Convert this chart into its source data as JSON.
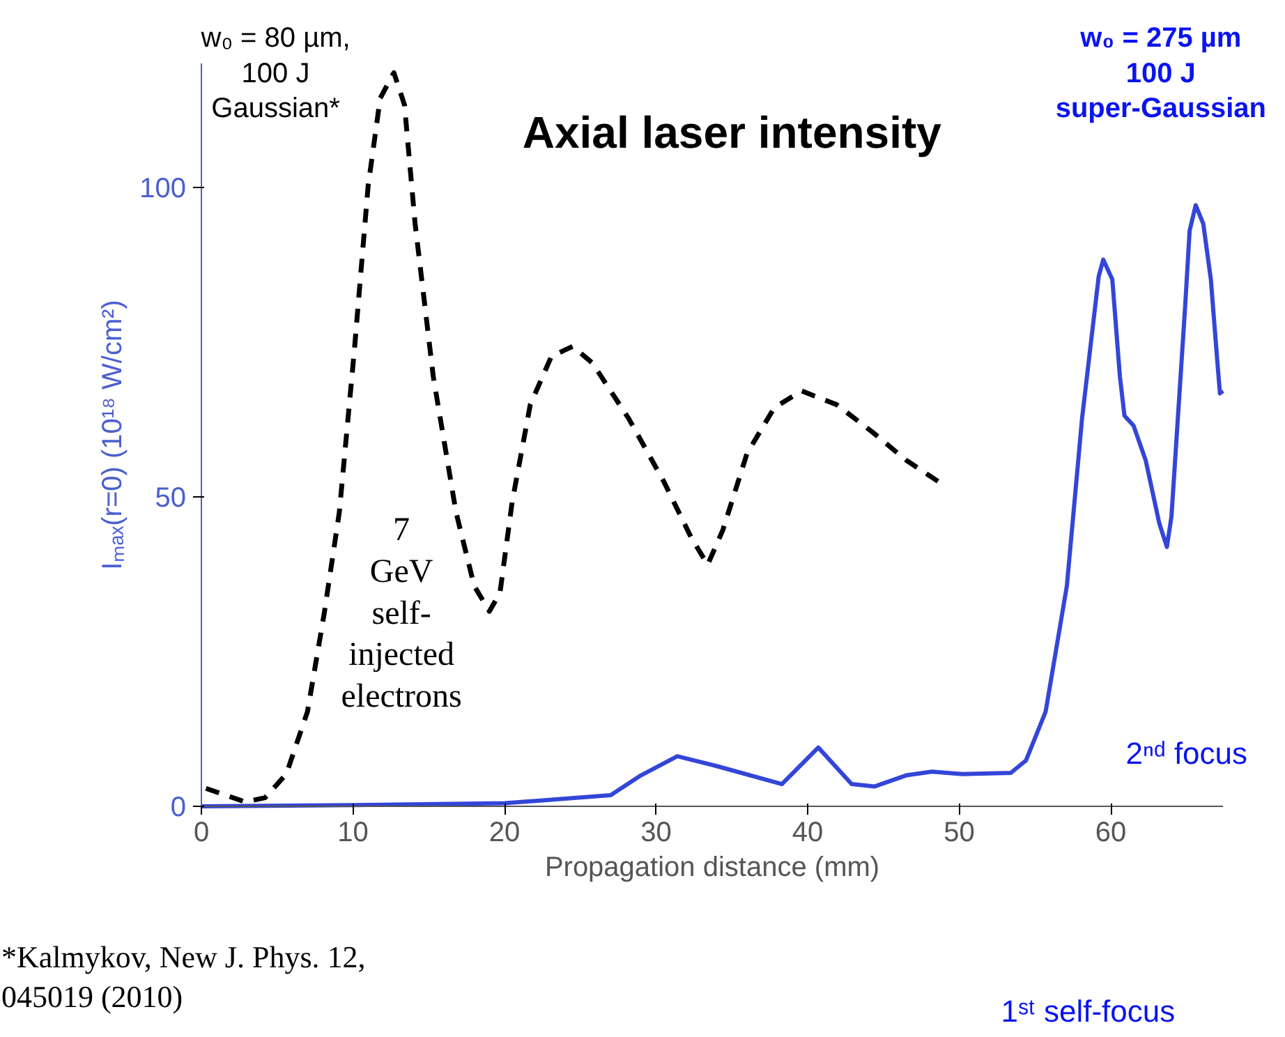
{
  "chart_data": {
    "type": "line",
    "title": "Axial laser intensity",
    "xlabel": "Propagation distance (mm)",
    "ylabel": "Iₘₐₓ(r=0) (10¹⁸ W/cm²)",
    "xlim": [
      0,
      67.4
    ],
    "ylim": [
      0,
      120
    ],
    "xticks": [
      0,
      10,
      20,
      30,
      40,
      50,
      60
    ],
    "yticks": [
      0,
      50,
      100
    ],
    "grid": false,
    "marker": "none",
    "series": [
      {
        "color": "#000000",
        "line_style": "dashed",
        "x": [
          0.3,
          2.9,
          4.2,
          5.6,
          7.0,
          8.1,
          9.1,
          10.1,
          11.0,
          11.8,
          12.7,
          13.4,
          14.1,
          15.3,
          16.8,
          18.0,
          19.0,
          19.7,
          20.5,
          21.7,
          23.1,
          24.5,
          25.8,
          28.2,
          30.5,
          32.3,
          33.4,
          34.4,
          36.0,
          37.8,
          39.6,
          41.9,
          44.3,
          46.5,
          48.6
        ],
        "values": [
          2.9,
          0.7,
          1.4,
          5.2,
          15.3,
          31.1,
          47.5,
          73.9,
          100.2,
          114.4,
          118.5,
          113.3,
          94.1,
          69.4,
          47.5,
          35.6,
          31.5,
          34.5,
          49.1,
          64.9,
          72.7,
          74.3,
          71.6,
          62.6,
          52.5,
          43.5,
          39.0,
          44.6,
          57.0,
          64.4,
          67.1,
          64.9,
          60.4,
          55.9,
          52.5
        ]
      },
      {
        "color": "#3346d8",
        "line_style": "solid",
        "x": [
          0,
          10,
          20,
          27,
          29,
          31.4,
          34,
          38.3,
          40.7,
          42.9,
          44.4,
          46.5,
          48.2,
          50.2,
          53.4,
          54.4,
          55.7,
          57.1,
          58.1,
          59.2,
          59.5,
          60.1,
          60.6,
          60.9,
          61.5,
          62.3,
          63.2,
          63.7,
          64.0,
          64.9,
          65.2,
          65.6,
          66.1,
          66.6,
          67.0,
          67.2,
          67.4
        ],
        "values": [
          0,
          0.2,
          0.5,
          1.8,
          5.0,
          8.1,
          6.5,
          3.6,
          9.5,
          3.6,
          3.2,
          5.0,
          5.6,
          5.2,
          5.4,
          7.4,
          15.3,
          35.6,
          62.6,
          85.6,
          88.3,
          85.1,
          69.4,
          63.1,
          61.5,
          55.9,
          45.7,
          41.9,
          46.8,
          80.6,
          93.0,
          97.1,
          94.1,
          85.1,
          72.7,
          66.7,
          67.1
        ]
      }
    ],
    "annotations": [
      "w₀ = 80 µm,\n100 J\nGaussian*",
      "w₀ = 275 µm\n100 J\nsuper-Gaussian",
      "7\nGeV\nself-\ninjected\nelectrons",
      "2ⁿᵈ focus",
      "1ˢᵗ self-focus",
      "*Kalmykov, New J. Phys. 12,\n045019 (2010)"
    ]
  }
}
